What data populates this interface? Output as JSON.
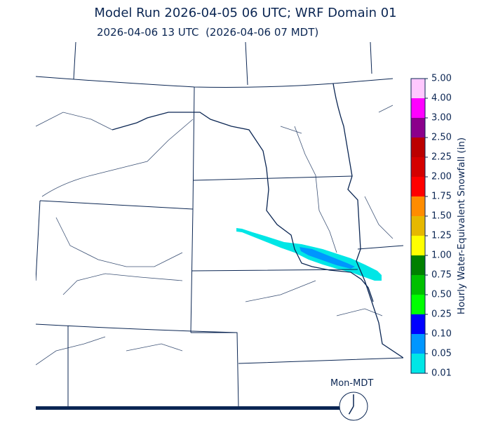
{
  "title": "Model Run 2026-04-05 06 UTC; WRF Domain 01",
  "subtitle": "2026-04-06 13 UTC  (2026-04-06 07 MDT)",
  "colorbar": {
    "label": "Hourly Water-Equivalent Snowfall (in)",
    "ticks": [
      "5.00",
      "4.00",
      "3.00",
      "2.50",
      "2.25",
      "2.00",
      "1.75",
      "1.50",
      "1.25",
      "1.00",
      "0.75",
      "0.50",
      "0.25",
      "0.10",
      "0.05",
      "0.01"
    ],
    "colors": [
      "#ffc8ff",
      "#ff00ff",
      "#8b008b",
      "#bb0000",
      "#d40000",
      "#ff0000",
      "#ff8c00",
      "#e6b800",
      "#ffff00",
      "#008000",
      "#00c000",
      "#00ff00",
      "#0000ff",
      "#0096ff",
      "#00e6e6"
    ]
  },
  "clock": {
    "label": "Mon-MDT",
    "hour": 7,
    "minute": 0
  },
  "colors": {
    "line": "#0b2653",
    "snow_light": "#00e6e6",
    "snow_med": "#0096ff"
  }
}
